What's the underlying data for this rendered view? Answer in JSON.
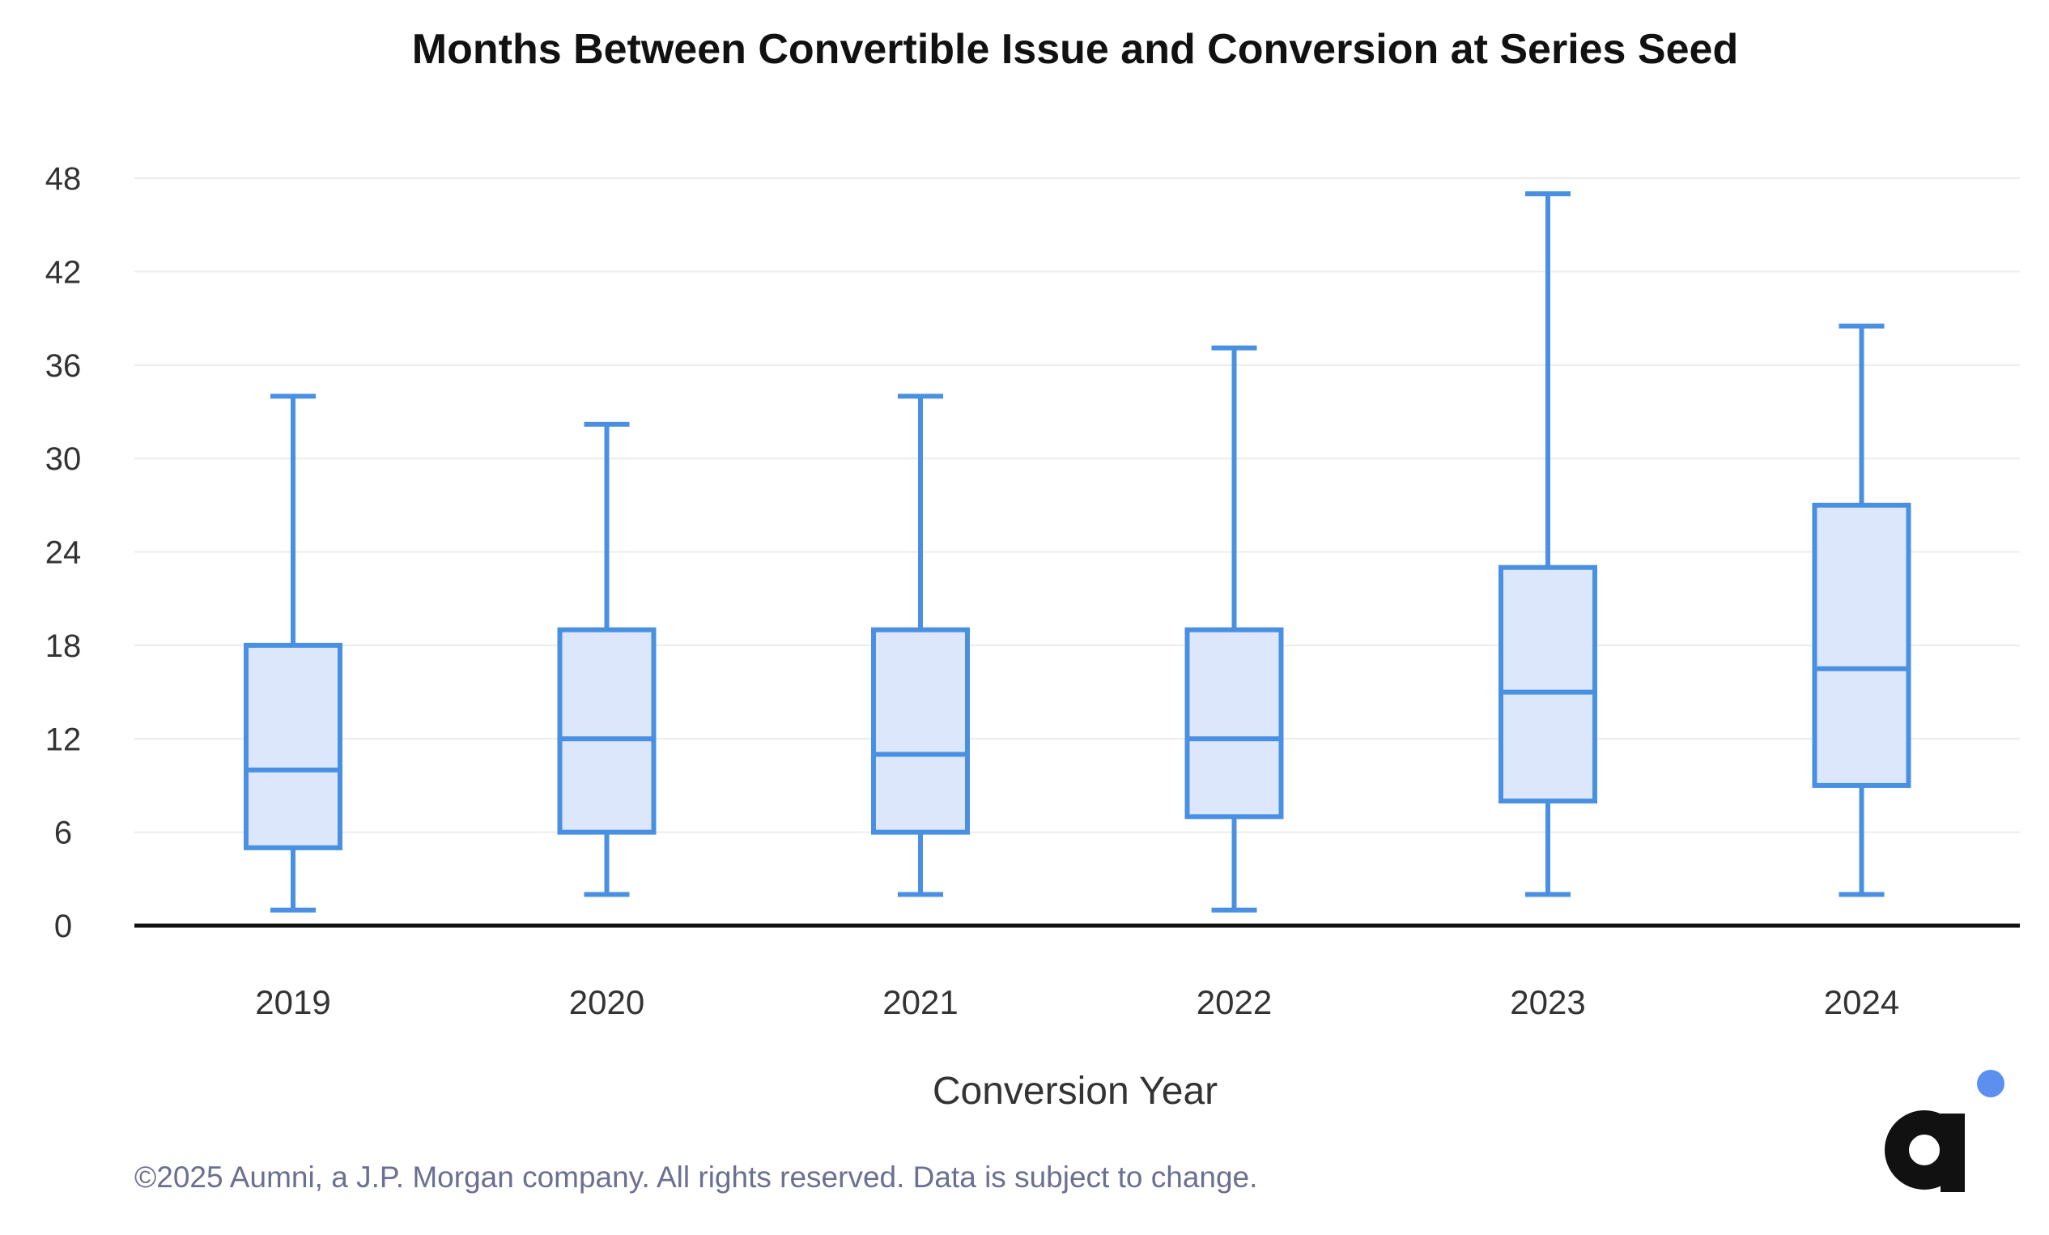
{
  "chart_data": {
    "type": "boxplot",
    "title": "Months Between Convertible Issue and Conversion at Series Seed",
    "xlabel": "Conversion Year",
    "ylabel": "",
    "ylim": [
      0,
      48
    ],
    "yticks": [
      0,
      6,
      12,
      18,
      24,
      30,
      36,
      42,
      48
    ],
    "grid": true,
    "categories": [
      "2019",
      "2020",
      "2021",
      "2022",
      "2023",
      "2024"
    ],
    "boxes": [
      {
        "category": "2019",
        "min": 1,
        "q1": 5,
        "median": 10,
        "q3": 18,
        "max": 34
      },
      {
        "category": "2020",
        "min": 2,
        "q1": 6,
        "median": 12,
        "q3": 19,
        "max": 32.2
      },
      {
        "category": "2021",
        "min": 2,
        "q1": 6,
        "median": 11,
        "q3": 19,
        "max": 34
      },
      {
        "category": "2022",
        "min": 1,
        "q1": 7,
        "median": 12,
        "q3": 19,
        "max": 37.1
      },
      {
        "category": "2023",
        "min": 2,
        "q1": 8,
        "median": 15,
        "q3": 23,
        "max": 47
      },
      {
        "category": "2024",
        "min": 2,
        "q1": 9,
        "median": 16.5,
        "q3": 27,
        "max": 38.5
      }
    ],
    "colors": {
      "stroke": "#4a90e2",
      "fill": "#dce7fb",
      "grid": "#ececec",
      "axis": "#111111"
    }
  },
  "footer": "©2025 Aumni, a J.P. Morgan company. All rights reserved. Data is subject to change.",
  "logo": {
    "icon": "aumni-logo-icon",
    "text": "a",
    "dot_color": "#5b8ff0",
    "letter_color": "#111111"
  }
}
